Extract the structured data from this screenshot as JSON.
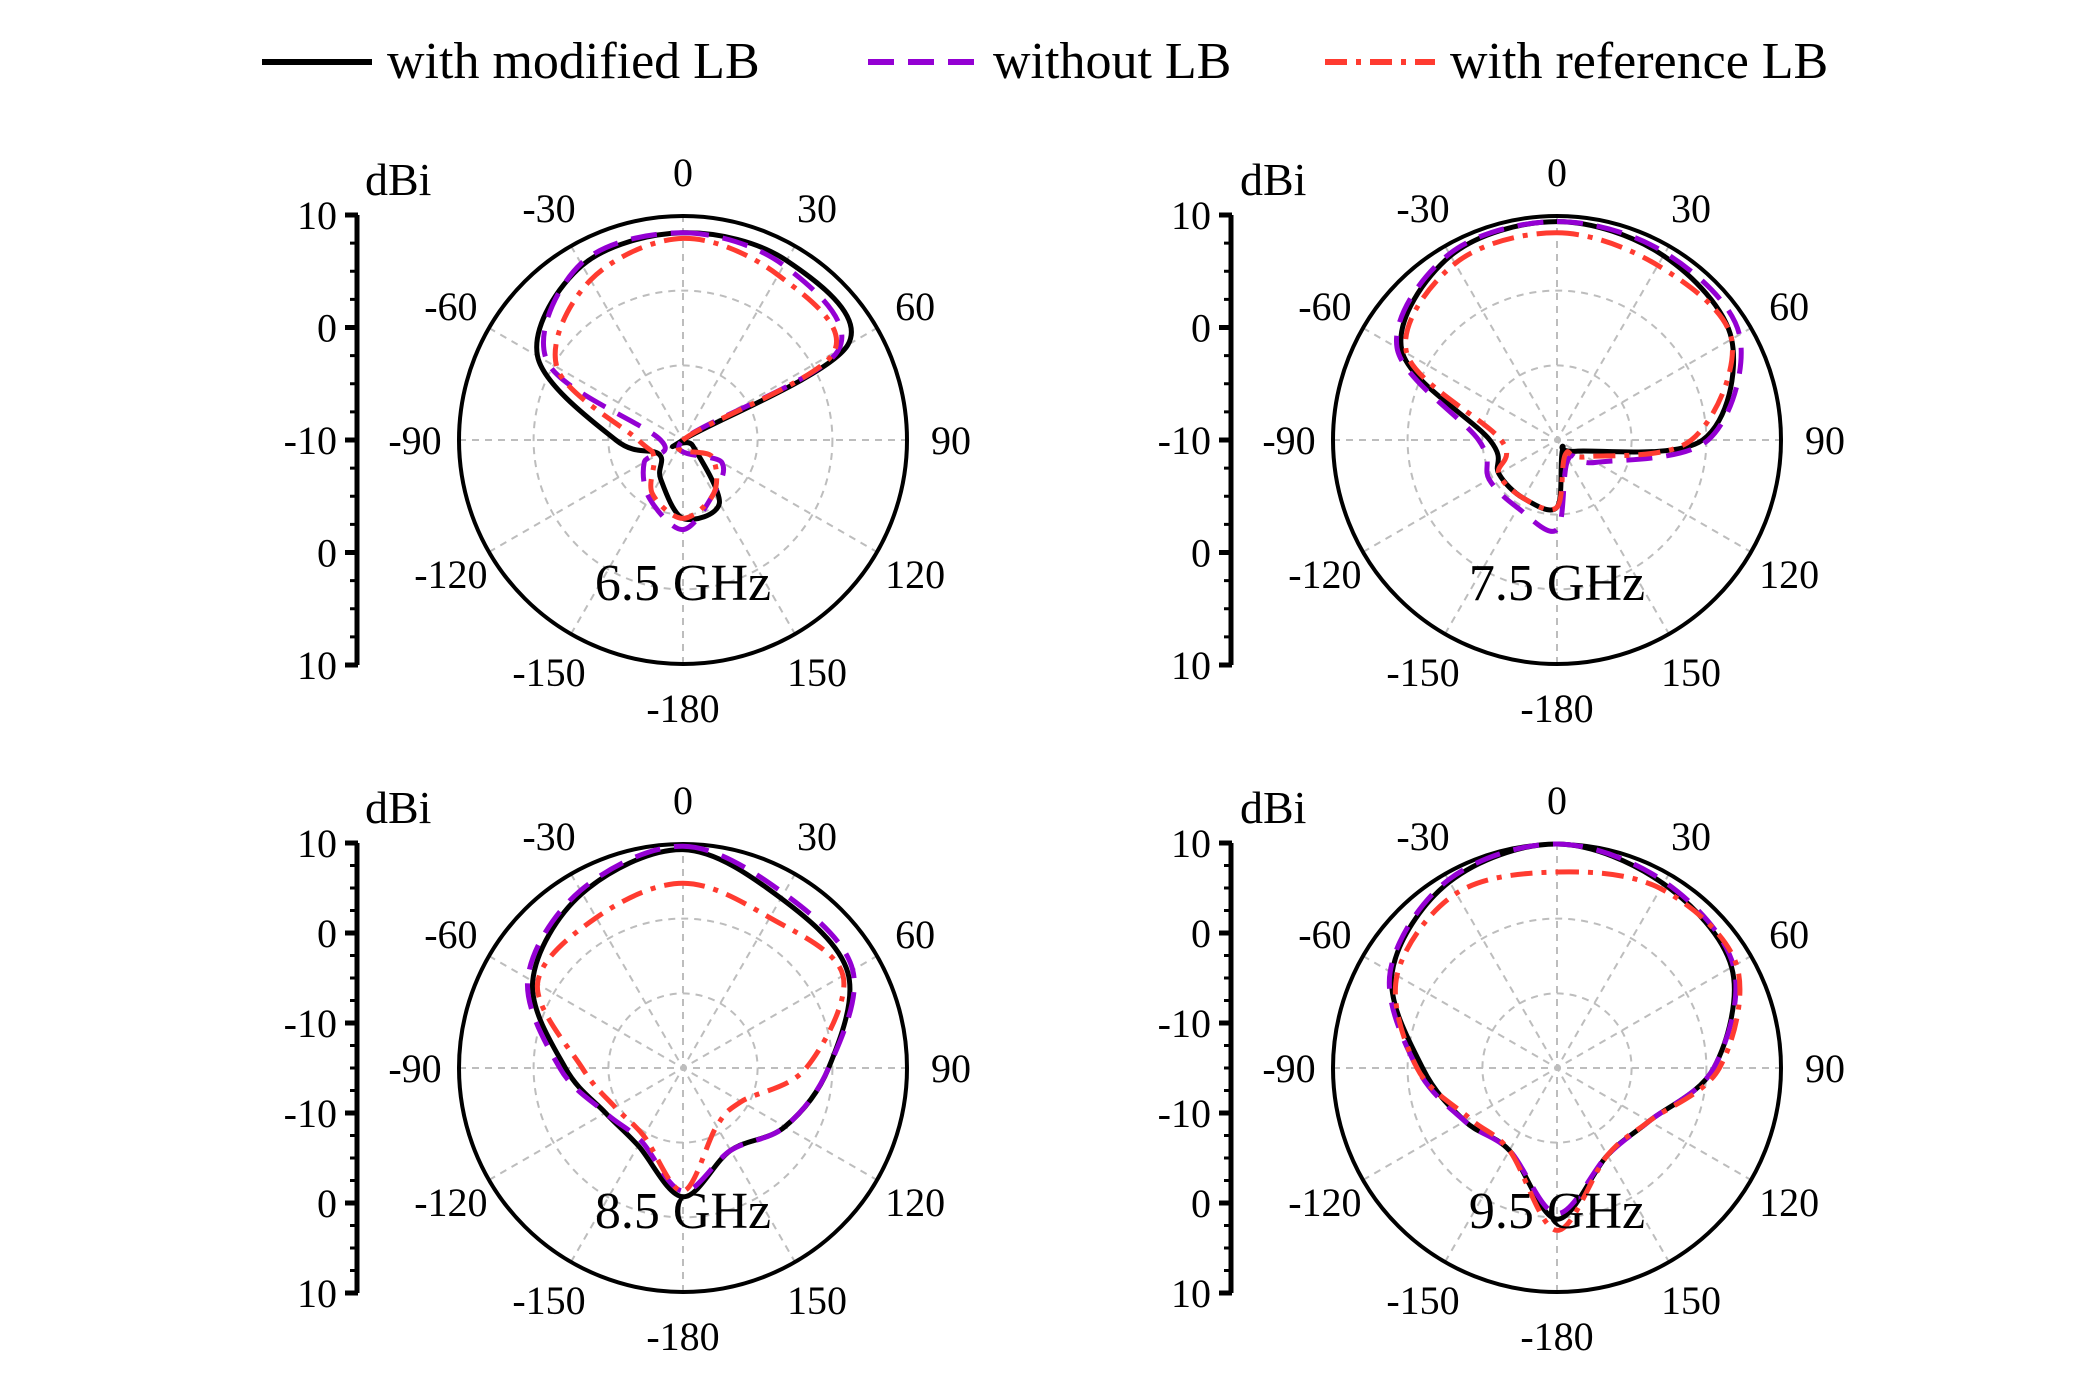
{
  "legend": [
    {
      "key": "modified",
      "label": "with modified LB",
      "color": "#000000",
      "dash": "solid"
    },
    {
      "key": "without",
      "label": "without LB",
      "color": "#9400D3",
      "dash": "dash"
    },
    {
      "key": "reference",
      "label": "with reference LB",
      "color": "#FF3B30",
      "dash": "dashdot"
    }
  ],
  "chart_data": [
    {
      "type": "polar",
      "title": "6.5 GHz",
      "unit": "dBi",
      "radial_range": [
        -10,
        10
      ],
      "radial_axis_ticks": [
        "10",
        "0",
        "-10",
        "0",
        "10"
      ],
      "angle_ticks": [
        0,
        30,
        60,
        90,
        120,
        150,
        -180,
        -150,
        -120,
        -90,
        -60,
        -30
      ],
      "angles_deg": [
        0,
        30,
        60,
        90,
        120,
        150,
        180,
        210,
        240,
        270,
        300,
        330
      ],
      "series": [
        {
          "key": "modified",
          "name": "with modified LB",
          "values": [
            8.5,
            8.5,
            7.0,
            -10.0,
            -9.0,
            -3.5,
            -3.0,
            -6.0,
            -7.5,
            -4.0,
            5.0,
            8.0
          ]
        },
        {
          "key": "without",
          "name": "without LB",
          "values": [
            8.5,
            8.0,
            6.0,
            -10.0,
            -6.0,
            -4.5,
            -2.0,
            -4.0,
            -6.0,
            -8.0,
            4.0,
            8.2
          ]
        },
        {
          "key": "reference",
          "name": "with reference LB",
          "values": [
            8.0,
            7.0,
            5.5,
            -10.0,
            -7.0,
            -4.5,
            -3.0,
            -4.5,
            -7.0,
            -6.0,
            3.0,
            6.5
          ]
        }
      ]
    },
    {
      "type": "polar",
      "title": "7.5 GHz",
      "unit": "dBi",
      "radial_range": [
        -10,
        10
      ],
      "radial_axis_ticks": [
        "10",
        "0",
        "-10",
        "0",
        "10"
      ],
      "angle_ticks": [
        0,
        30,
        60,
        90,
        120,
        150,
        -180,
        -150,
        -120,
        -90,
        -60,
        -30
      ],
      "angles_deg": [
        0,
        30,
        60,
        90,
        120,
        150,
        180,
        210,
        240,
        270,
        300,
        330
      ],
      "series": [
        {
          "key": "modified",
          "name": "with modified LB",
          "values": [
            9.5,
            9.0,
            8.0,
            3.0,
            -8.0,
            -9.0,
            -4.0,
            -4.0,
            -4.0,
            -4.0,
            6.0,
            9.0
          ]
        },
        {
          "key": "without",
          "name": "without LB",
          "values": [
            9.5,
            9.3,
            8.8,
            3.5,
            -6.0,
            -8.0,
            -2.0,
            -3.0,
            -3.0,
            -3.0,
            6.5,
            9.2
          ]
        },
        {
          "key": "reference",
          "name": "with reference LB",
          "values": [
            8.5,
            8.0,
            8.0,
            2.0,
            -7.0,
            -8.5,
            -4.0,
            -4.0,
            -4.0,
            -5.0,
            5.5,
            8.2
          ]
        }
      ]
    },
    {
      "type": "polar",
      "title": "8.5 GHz",
      "unit": "dBi",
      "radial_range": [
        -10,
        10
      ],
      "radial_axis_ticks": [
        "10",
        "0",
        "-10",
        "-10",
        "0",
        "10"
      ],
      "angle_ticks": [
        0,
        30,
        60,
        90,
        120,
        150,
        -180,
        -150,
        -120,
        -90,
        -60,
        -30
      ],
      "angles_deg": [
        0,
        30,
        60,
        90,
        120,
        150,
        180,
        210,
        240,
        270,
        300,
        330
      ],
      "series": [
        {
          "key": "modified",
          "name": "with modified LB",
          "values": [
            9.5,
            7.5,
            7.0,
            3.0,
            0.5,
            -1.5,
            1.5,
            -2.0,
            -2.0,
            0.5,
            5.5,
            8.0
          ]
        },
        {
          "key": "without",
          "name": "without LB",
          "values": [
            9.8,
            8.0,
            7.5,
            3.0,
            0.5,
            -1.5,
            1.0,
            -2.5,
            -2.0,
            1.0,
            6.0,
            8.3
          ]
        },
        {
          "key": "reference",
          "name": "with reference LB",
          "values": [
            6.5,
            5.5,
            6.5,
            1.0,
            -4.0,
            -4.0,
            1.0,
            -3.0,
            -3.0,
            -1.0,
            5.0,
            5.5
          ]
        }
      ]
    },
    {
      "type": "polar",
      "title": "9.5 GHz",
      "unit": "dBi",
      "radial_range": [
        -10,
        10
      ],
      "radial_axis_ticks": [
        "10",
        "0",
        "-10",
        "-10",
        "0",
        "10"
      ],
      "angle_ticks": [
        0,
        30,
        60,
        90,
        120,
        150,
        -180,
        -150,
        -120,
        -90,
        -60,
        -30
      ],
      "angles_deg": [
        0,
        30,
        60,
        90,
        120,
        150,
        180,
        210,
        240,
        270,
        300,
        330
      ],
      "series": [
        {
          "key": "modified",
          "name": "with modified LB",
          "values": [
            10.0,
            9.0,
            8.0,
            4.0,
            -0.5,
            -1.0,
            3.5,
            -1.5,
            -0.5,
            2.0,
            7.0,
            9.2
          ]
        },
        {
          "key": "without",
          "name": "without LB",
          "values": [
            10.0,
            9.2,
            8.2,
            4.0,
            -0.5,
            -1.0,
            3.0,
            -1.5,
            -0.5,
            2.5,
            7.2,
            9.4
          ]
        },
        {
          "key": "reference",
          "name": "with reference LB",
          "values": [
            7.5,
            8.5,
            8.5,
            4.5,
            -0.5,
            -1.0,
            4.5,
            -1.5,
            -1.0,
            2.5,
            6.5,
            8.0
          ]
        }
      ]
    }
  ]
}
